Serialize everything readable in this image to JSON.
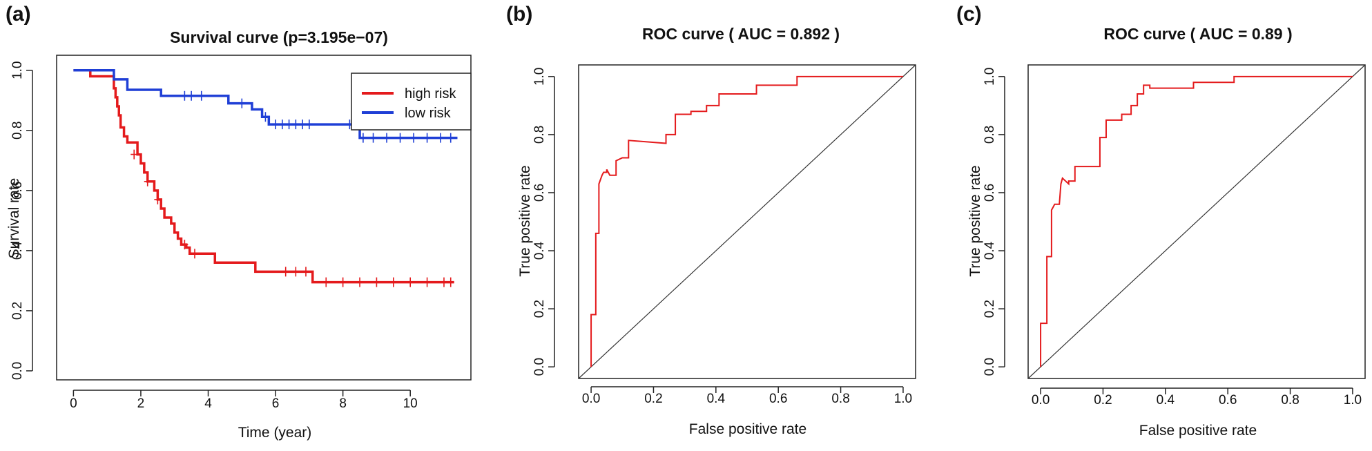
{
  "panels": {
    "a": {
      "letter": "(a)",
      "title": "Survival curve (p=3.195e−07)",
      "xlabel": "Time (year)",
      "ylabel": "Survival rate",
      "legend": {
        "items": [
          "high risk",
          "low risk"
        ],
        "colors": [
          "#e41a1c",
          "#1f3fd6"
        ],
        "placement": "top-right"
      }
    },
    "b": {
      "letter": "(b)",
      "title": "ROC curve ( AUC =  0.892 )",
      "xlabel": "False positive rate",
      "ylabel": "True positive rate"
    },
    "c": {
      "letter": "(c)",
      "title": "ROC curve ( AUC =  0.89 )",
      "xlabel": "False positive rate",
      "ylabel": "True positive rate"
    }
  },
  "chart_data": [
    {
      "panel": "a",
      "type": "line",
      "step": true,
      "title": "Survival curve (p=3.195e−07)",
      "xlabel": "Time (year)",
      "ylabel": "Survival rate",
      "xlim": [
        -0.5,
        11.8
      ],
      "ylim": [
        -0.03,
        1.05
      ],
      "xticks": [
        0,
        2,
        4,
        6,
        8,
        10
      ],
      "yticks": [
        0.0,
        0.2,
        0.4,
        0.6,
        0.8,
        1.0
      ],
      "series": [
        {
          "name": "high risk",
          "color": "#e41a1c",
          "x": [
            0,
            0.5,
            1.2,
            1.25,
            1.3,
            1.35,
            1.4,
            1.5,
            1.6,
            1.9,
            2.0,
            2.1,
            2.2,
            2.4,
            2.5,
            2.6,
            2.7,
            2.9,
            3.0,
            3.1,
            3.2,
            3.35,
            3.45,
            4.2,
            5.4,
            7.1,
            11.3
          ],
          "y": [
            1.0,
            0.98,
            0.94,
            0.91,
            0.88,
            0.85,
            0.81,
            0.78,
            0.76,
            0.72,
            0.69,
            0.66,
            0.63,
            0.6,
            0.57,
            0.54,
            0.51,
            0.49,
            0.46,
            0.44,
            0.42,
            0.41,
            0.39,
            0.36,
            0.33,
            0.295,
            0.295
          ],
          "censor_x": [
            1.8,
            2.2,
            2.5,
            3.3,
            3.6,
            6.3,
            6.6,
            6.9,
            7.5,
            8.0,
            8.5,
            9.0,
            9.5,
            10.0,
            10.5,
            11.0,
            11.2
          ],
          "censor_y": [
            0.72,
            0.63,
            0.57,
            0.42,
            0.39,
            0.33,
            0.33,
            0.33,
            0.295,
            0.295,
            0.295,
            0.295,
            0.295,
            0.295,
            0.295,
            0.295,
            0.295
          ]
        },
        {
          "name": "low risk",
          "color": "#1f3fd6",
          "x": [
            0,
            1.2,
            1.6,
            2.6,
            4.6,
            5.3,
            5.6,
            5.8,
            8.5,
            11.4
          ],
          "y": [
            1.0,
            0.97,
            0.935,
            0.915,
            0.89,
            0.87,
            0.845,
            0.82,
            0.775,
            0.775
          ],
          "censor_x": [
            3.3,
            3.5,
            3.8,
            5.0,
            5.7,
            6.0,
            6.2,
            6.4,
            6.6,
            6.8,
            7.0,
            8.2,
            8.4,
            8.6,
            8.9,
            9.3,
            9.7,
            10.1,
            10.5,
            10.9,
            11.2
          ],
          "censor_y": [
            0.915,
            0.915,
            0.915,
            0.89,
            0.845,
            0.82,
            0.82,
            0.82,
            0.82,
            0.82,
            0.82,
            0.82,
            0.82,
            0.775,
            0.775,
            0.775,
            0.775,
            0.775,
            0.775,
            0.775,
            0.775
          ]
        }
      ]
    },
    {
      "panel": "b",
      "type": "line",
      "step": true,
      "title": "ROC curve ( AUC =  0.892 )",
      "xlabel": "False positive rate",
      "ylabel": "True positive rate",
      "xlim": [
        -0.04,
        1.04
      ],
      "ylim": [
        -0.04,
        1.04
      ],
      "xticks": [
        0.0,
        0.2,
        0.4,
        0.6,
        0.8,
        1.0
      ],
      "yticks": [
        0.0,
        0.2,
        0.4,
        0.6,
        0.8,
        1.0
      ],
      "diagonal": true,
      "series": [
        {
          "color": "#e41a1c",
          "x": [
            0.0,
            0.0,
            0.015,
            0.015,
            0.025,
            0.025,
            0.035,
            0.04,
            0.05,
            0.05,
            0.06,
            0.08,
            0.08,
            0.1,
            0.12,
            0.12,
            0.24,
            0.24,
            0.27,
            0.27,
            0.32,
            0.32,
            0.37,
            0.37,
            0.41,
            0.41,
            0.53,
            0.53,
            0.66,
            0.66,
            1.0
          ],
          "y": [
            0.0,
            0.18,
            0.18,
            0.46,
            0.46,
            0.63,
            0.66,
            0.67,
            0.67,
            0.68,
            0.66,
            0.66,
            0.71,
            0.72,
            0.72,
            0.78,
            0.77,
            0.8,
            0.8,
            0.87,
            0.87,
            0.88,
            0.88,
            0.9,
            0.9,
            0.94,
            0.94,
            0.97,
            0.97,
            1.0,
            1.0
          ]
        }
      ]
    },
    {
      "panel": "c",
      "type": "line",
      "step": true,
      "title": "ROC curve ( AUC =  0.89 )",
      "xlabel": "False positive rate",
      "ylabel": "True positive rate",
      "xlim": [
        -0.04,
        1.04
      ],
      "ylim": [
        -0.04,
        1.04
      ],
      "xticks": [
        0.0,
        0.2,
        0.4,
        0.6,
        0.8,
        1.0
      ],
      "yticks": [
        0.0,
        0.2,
        0.4,
        0.6,
        0.8,
        1.0
      ],
      "diagonal": true,
      "series": [
        {
          "color": "#e41a1c",
          "x": [
            0.0,
            0.0,
            0.02,
            0.02,
            0.035,
            0.035,
            0.045,
            0.06,
            0.065,
            0.07,
            0.09,
            0.09,
            0.11,
            0.11,
            0.19,
            0.19,
            0.21,
            0.21,
            0.26,
            0.26,
            0.29,
            0.29,
            0.31,
            0.31,
            0.33,
            0.33,
            0.35,
            0.35,
            0.49,
            0.49,
            0.62,
            0.62,
            1.0
          ],
          "y": [
            0.0,
            0.15,
            0.15,
            0.38,
            0.38,
            0.54,
            0.56,
            0.56,
            0.63,
            0.65,
            0.63,
            0.64,
            0.64,
            0.69,
            0.69,
            0.79,
            0.79,
            0.85,
            0.85,
            0.87,
            0.87,
            0.9,
            0.9,
            0.94,
            0.94,
            0.97,
            0.97,
            0.96,
            0.96,
            0.98,
            0.98,
            1.0,
            1.0
          ]
        }
      ]
    }
  ]
}
